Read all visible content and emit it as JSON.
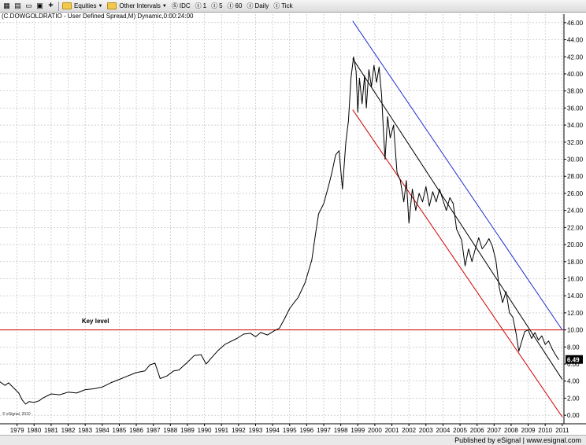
{
  "toolbar": {
    "icons": [
      "grid-icon",
      "chart-icon",
      "document-icon",
      "print-icon",
      "plus-icon"
    ],
    "equities_label": "Equities",
    "other_intervals_label": "Other Intervals",
    "idc_label": "IDC",
    "interval_1": "1",
    "interval_5": "5",
    "interval_60": "60",
    "daily_label": "Daily",
    "tick_label": "Tick"
  },
  "chart_title": "(C.DOWGOLDRATIO - User Defined Spread,M) Dynamic,0:00:24:00",
  "footer_text": "Published by eSignal | www.esignal.com",
  "watermark": "© eSignal, 2010",
  "colors": {
    "price": "#000000",
    "key_level": "#d00000",
    "upper_channel": "#1f2fd0",
    "lower_channel": "#d00000",
    "mid_channel": "#000000",
    "last_price_bg": "#000000",
    "last_price_fg": "#ffffff"
  },
  "chart_data": {
    "type": "line",
    "title": "(C.DOWGOLDRATIO - User Defined Spread,M) Dynamic,0:00:24:00",
    "xlabel": "",
    "ylabel": "",
    "xlim": [
      1978.5,
      2011.6
    ],
    "ylim": [
      -1,
      47
    ],
    "x_ticks": [
      "1979",
      "1980",
      "1981",
      "1982",
      "1983",
      "1984",
      "1985",
      "1986",
      "1987",
      "1988",
      "1989",
      "1990",
      "1991",
      "1992",
      "1993",
      "1994",
      "1995",
      "1996",
      "1997",
      "1998",
      "1999",
      "2000",
      "2001",
      "2002",
      "2003",
      "2004",
      "2005",
      "2006",
      "2007",
      "2008",
      "2009",
      "2010",
      "2011"
    ],
    "y_ticks": [
      "0.00",
      "2.00",
      "4.00",
      "6.00",
      "8.00",
      "10.00",
      "12.00",
      "14.00",
      "16.00",
      "18.00",
      "20.00",
      "22.00",
      "24.00",
      "26.00",
      "28.00",
      "30.00",
      "32.00",
      "34.00",
      "36.00",
      "38.00",
      "40.00",
      "42.00",
      "44.00",
      "46.00"
    ],
    "grid": true,
    "last_value_label": "6.49",
    "series": [
      {
        "values": [
          [
            1978.5,
            3.9
          ],
          [
            1978.8,
            3.5
          ],
          [
            1979.0,
            3.8
          ],
          [
            1979.3,
            3.2
          ],
          [
            1979.6,
            2.6
          ],
          [
            1979.8,
            1.8
          ],
          [
            1980.0,
            1.3
          ],
          [
            1980.2,
            1.6
          ],
          [
            1980.5,
            1.5
          ],
          [
            1980.8,
            1.7
          ],
          [
            1981.0,
            2.0
          ],
          [
            1981.5,
            2.5
          ],
          [
            1982.0,
            2.4
          ],
          [
            1982.5,
            2.7
          ],
          [
            1983.0,
            2.6
          ],
          [
            1983.5,
            3.0
          ],
          [
            1984.0,
            3.1
          ],
          [
            1984.5,
            3.3
          ],
          [
            1985.0,
            3.8
          ],
          [
            1985.5,
            4.2
          ],
          [
            1986.0,
            4.6
          ],
          [
            1986.5,
            5.0
          ],
          [
            1987.0,
            5.2
          ],
          [
            1987.3,
            5.9
          ],
          [
            1987.6,
            6.1
          ],
          [
            1987.9,
            4.3
          ],
          [
            1988.3,
            4.6
          ],
          [
            1988.7,
            5.2
          ],
          [
            1989.0,
            5.3
          ],
          [
            1989.5,
            6.2
          ],
          [
            1989.9,
            7.0
          ],
          [
            1990.3,
            7.1
          ],
          [
            1990.6,
            6.0
          ],
          [
            1990.9,
            6.7
          ],
          [
            1991.3,
            7.6
          ],
          [
            1991.7,
            8.3
          ],
          [
            1992.0,
            8.6
          ],
          [
            1992.4,
            9.0
          ],
          [
            1992.8,
            9.5
          ],
          [
            1993.2,
            9.6
          ],
          [
            1993.5,
            9.2
          ],
          [
            1993.8,
            9.7
          ],
          [
            1994.2,
            9.4
          ],
          [
            1994.6,
            9.9
          ],
          [
            1994.9,
            10.2
          ],
          [
            1995.2,
            11.3
          ],
          [
            1995.5,
            12.5
          ],
          [
            1995.8,
            13.3
          ],
          [
            1996.0,
            13.8
          ],
          [
            1996.4,
            15.5
          ],
          [
            1996.8,
            18.2
          ],
          [
            1997.0,
            21.0
          ],
          [
            1997.2,
            23.6
          ],
          [
            1997.5,
            24.8
          ],
          [
            1997.8,
            27.0
          ],
          [
            1998.0,
            28.6
          ],
          [
            1998.2,
            30.5
          ],
          [
            1998.4,
            31.0
          ],
          [
            1998.6,
            26.5
          ],
          [
            1998.8,
            32.0
          ],
          [
            1998.95,
            34.5
          ],
          [
            1999.1,
            39.5
          ],
          [
            1999.25,
            42.0
          ],
          [
            1999.4,
            40.3
          ],
          [
            1999.5,
            35.5
          ],
          [
            1999.6,
            39.5
          ],
          [
            1999.75,
            36.5
          ],
          [
            1999.9,
            39.8
          ],
          [
            2000.0,
            36.0
          ],
          [
            2000.15,
            40.5
          ],
          [
            2000.3,
            38.5
          ],
          [
            2000.45,
            41.0
          ],
          [
            2000.6,
            39.0
          ],
          [
            2000.75,
            40.8
          ],
          [
            2000.9,
            37.5
          ],
          [
            2001.0,
            33.5
          ],
          [
            2001.1,
            30.0
          ],
          [
            2001.25,
            35.0
          ],
          [
            2001.4,
            32.5
          ],
          [
            2001.6,
            34.0
          ],
          [
            2001.8,
            28.5
          ],
          [
            2002.0,
            27.5
          ],
          [
            2002.2,
            25.0
          ],
          [
            2002.35,
            27.5
          ],
          [
            2002.5,
            22.5
          ],
          [
            2002.7,
            26.5
          ],
          [
            2002.9,
            24.0
          ],
          [
            2003.1,
            26.0
          ],
          [
            2003.3,
            25.0
          ],
          [
            2003.5,
            26.8
          ],
          [
            2003.7,
            24.5
          ],
          [
            2003.9,
            26.2
          ],
          [
            2004.1,
            25.0
          ],
          [
            2004.3,
            26.5
          ],
          [
            2004.5,
            25.2
          ],
          [
            2004.7,
            24.0
          ],
          [
            2004.9,
            25.5
          ],
          [
            2005.1,
            24.8
          ],
          [
            2005.3,
            21.8
          ],
          [
            2005.6,
            20.5
          ],
          [
            2005.8,
            17.5
          ],
          [
            2006.0,
            19.5
          ],
          [
            2006.2,
            18.0
          ],
          [
            2006.4,
            19.5
          ],
          [
            2006.6,
            20.8
          ],
          [
            2006.8,
            19.5
          ],
          [
            2007.0,
            20.0
          ],
          [
            2007.2,
            20.7
          ],
          [
            2007.4,
            19.8
          ],
          [
            2007.6,
            18.2
          ],
          [
            2007.8,
            15.0
          ],
          [
            2008.0,
            13.2
          ],
          [
            2008.2,
            14.5
          ],
          [
            2008.4,
            12.0
          ],
          [
            2008.6,
            11.5
          ],
          [
            2008.8,
            9.5
          ],
          [
            2008.95,
            7.5
          ],
          [
            2009.1,
            8.5
          ],
          [
            2009.3,
            9.8
          ],
          [
            2009.5,
            10.0
          ],
          [
            2009.7,
            9.0
          ],
          [
            2009.9,
            9.7
          ],
          [
            2010.1,
            8.8
          ],
          [
            2010.3,
            9.3
          ],
          [
            2010.5,
            8.3
          ],
          [
            2010.7,
            8.7
          ],
          [
            2010.9,
            7.8
          ],
          [
            2011.1,
            7.1
          ],
          [
            2011.3,
            6.49
          ]
        ]
      }
    ],
    "lines": [
      {
        "name": "Key level",
        "x": [
          1978.5,
          2011.6
        ],
        "y": [
          10.0,
          10.0
        ],
        "color": "#d00000"
      },
      {
        "x": [
          1999.2,
          2011.5
        ],
        "y": [
          46.2,
          10.0
        ],
        "color": "#1f2fd0"
      },
      {
        "x": [
          1999.2,
          2011.5
        ],
        "y": [
          41.8,
          4.2
        ],
        "color": "#000000"
      },
      {
        "x": [
          1999.2,
          2011.5
        ],
        "y": [
          35.8,
          -0.2
        ],
        "color": "#d00000"
      }
    ],
    "annotations": [
      {
        "text": "Key level",
        "x": 1983.3,
        "y": 10.8
      }
    ]
  }
}
